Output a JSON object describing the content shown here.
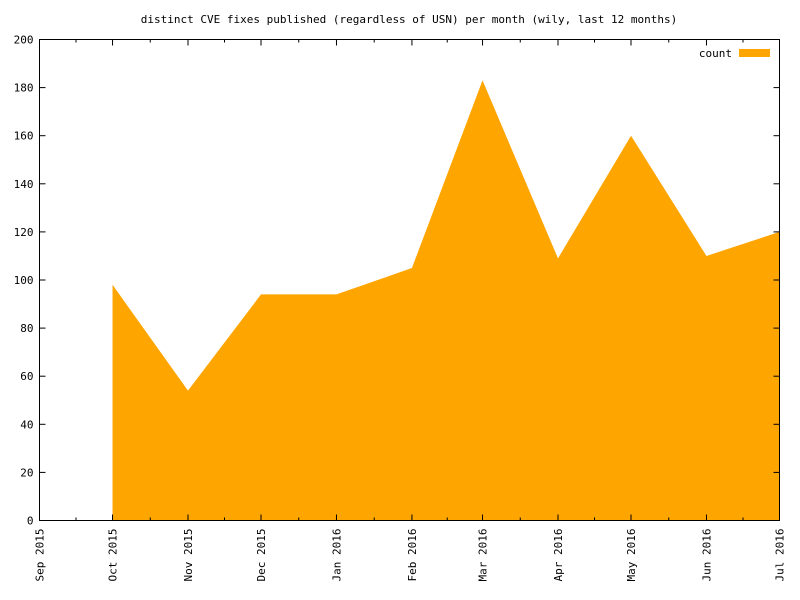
{
  "chart_data": {
    "type": "area",
    "title": "distinct CVE fixes published (regardless of USN) per month (wily, last 12 months)",
    "x_ticks": [
      "Sep 2015",
      "Oct 2015",
      "Nov 2015",
      "Dec 2015",
      "Jan 2016",
      "Feb 2016",
      "Mar 2016",
      "Apr 2016",
      "May 2016",
      "Jun 2016",
      "Jul 2016"
    ],
    "ylim": [
      0,
      200
    ],
    "y_ticks": [
      0,
      20,
      40,
      60,
      80,
      100,
      120,
      140,
      160,
      180,
      200
    ],
    "grid": false,
    "legend": {
      "position": "top-right",
      "entries": [
        "count"
      ]
    },
    "series": [
      {
        "name": "count",
        "color": "#FFA500",
        "points": [
          {
            "x": "2015-10-01",
            "y": 98
          },
          {
            "x": "2015-11-01",
            "y": 54
          },
          {
            "x": "2015-12-01",
            "y": 94
          },
          {
            "x": "2016-01-01",
            "y": 94
          },
          {
            "x": "2016-02-01",
            "y": 105
          },
          {
            "x": "2016-03-01",
            "y": 183
          },
          {
            "x": "2016-04-01",
            "y": 109
          },
          {
            "x": "2016-05-01",
            "y": 160
          },
          {
            "x": "2016-06-01",
            "y": 110
          },
          {
            "x": "2016-07-01",
            "y": 120
          }
        ]
      }
    ]
  }
}
